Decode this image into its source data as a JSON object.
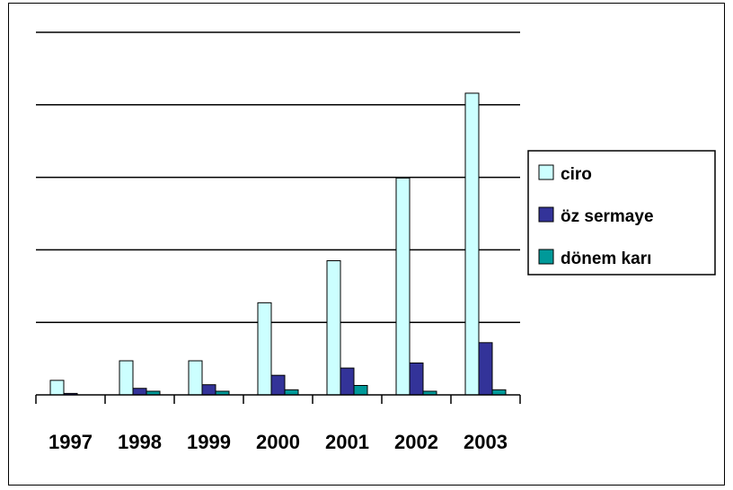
{
  "chart_data": {
    "type": "bar",
    "title": "",
    "xlabel": "",
    "ylabel": "",
    "categories": [
      "1997",
      "1998",
      "1999",
      "2000",
      "2001",
      "2002",
      "2003"
    ],
    "series": [
      {
        "name": "ciro",
        "color": "#ccffff",
        "values": [
          0.2,
          0.47,
          0.47,
          1.27,
          1.85,
          2.99,
          4.16
        ]
      },
      {
        "name": "öz sermaye",
        "color": "#333399",
        "values": [
          0.02,
          0.09,
          0.14,
          0.27,
          0.37,
          0.44,
          0.72
        ]
      },
      {
        "name": "dönem karı",
        "color": "#009999",
        "values": [
          0.0,
          0.05,
          0.05,
          0.07,
          0.13,
          0.05,
          0.07
        ]
      }
    ],
    "ylim": [
      0,
      5
    ],
    "y_gridlines": true,
    "y_tick_labels_shown": false,
    "legend_position": "right",
    "border_color": "#000000",
    "grid_color": "#000000"
  }
}
